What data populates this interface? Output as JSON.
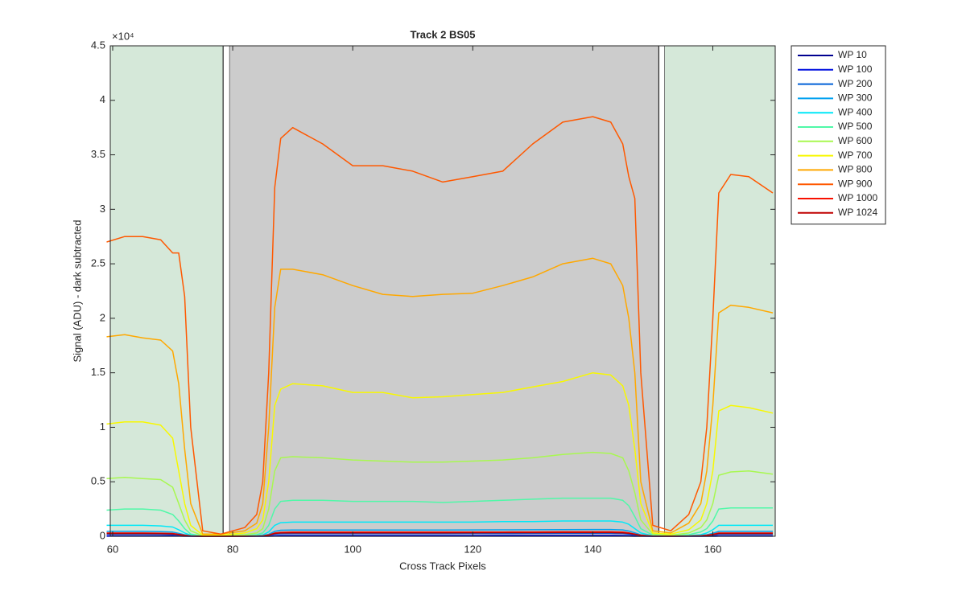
{
  "chart_data": {
    "type": "line",
    "title": "Track 2  BS05",
    "x_label": "Cross Track Pixels",
    "y_label": "Signal (ADU) - dark subtracted",
    "y_exponent": "×10⁴",
    "xlim": [
      59.6,
      170.4
    ],
    "xticks": [
      60,
      80,
      100,
      120,
      140,
      160
    ],
    "ylim": [
      0,
      45000
    ],
    "yticks": [
      {
        "value": 0,
        "label": "0"
      },
      {
        "value": 5000,
        "label": "0.5"
      },
      {
        "value": 10000,
        "label": "1"
      },
      {
        "value": 15000,
        "label": "1.5"
      },
      {
        "value": 20000,
        "label": "2"
      },
      {
        "value": 25000,
        "label": "2.5"
      },
      {
        "value": 30000,
        "label": "3"
      },
      {
        "value": 35000,
        "label": "3.5"
      },
      {
        "value": 40000,
        "label": "4"
      },
      {
        "value": 45000,
        "label": "4.5"
      }
    ],
    "grid": false,
    "legend": "outside-right",
    "regions": [
      {
        "xlim": [
          59.6,
          78.4
        ],
        "color": "#d5e8d9"
      },
      {
        "xlim": [
          78.4,
          79.5
        ],
        "color": "#ffffff",
        "edgecolor": "#000000"
      },
      {
        "xlim": [
          79.5,
          151
        ],
        "color": "#cccccc"
      },
      {
        "xlim": [
          151,
          152
        ],
        "color": "#ffffff",
        "edgecolor": "#000000"
      },
      {
        "xlim": [
          152,
          170.4
        ],
        "color": "#d5e8d9"
      }
    ],
    "x": [
      59,
      62,
      65,
      68,
      70,
      71,
      72,
      73,
      75,
      78,
      82,
      84,
      85,
      86,
      87,
      88,
      90,
      95,
      100,
      105,
      110,
      115,
      120,
      125,
      130,
      135,
      140,
      143,
      145,
      146,
      147,
      148,
      150,
      153,
      156,
      158,
      159,
      160,
      161,
      163,
      166,
      170
    ],
    "series": [
      {
        "name": "WP 10",
        "color": "#000090",
        "values": [
          5,
          5,
          5,
          5,
          5,
          4,
          2,
          1,
          0,
          0,
          0,
          0,
          1,
          2,
          5,
          6,
          6,
          6,
          6,
          6,
          6,
          6,
          6,
          6,
          6,
          6,
          6,
          6,
          6,
          5,
          3,
          1,
          0,
          0,
          0,
          1,
          2,
          3,
          5,
          5,
          5,
          5
        ]
      },
      {
        "name": "WP 100",
        "color": "#0010e0",
        "values": [
          60,
          60,
          60,
          57,
          50,
          36,
          18,
          6,
          1,
          1,
          2,
          4,
          8,
          24,
          60,
          72,
          75,
          75,
          75,
          75,
          75,
          75,
          76,
          78,
          80,
          81,
          81,
          81,
          76,
          63,
          42,
          18,
          3,
          1,
          4,
          9,
          18,
          36,
          60,
          60,
          60,
          60
        ]
      },
      {
        "name": "WP 200",
        "color": "#0060d8",
        "values": [
          200,
          200,
          200,
          190,
          170,
          120,
          60,
          20,
          2,
          2,
          6,
          12,
          25,
          80,
          200,
          240,
          250,
          250,
          250,
          250,
          250,
          250,
          255,
          260,
          265,
          270,
          270,
          270,
          255,
          210,
          140,
          60,
          8,
          4,
          12,
          30,
          60,
          120,
          200,
          200,
          200,
          200
        ]
      },
      {
        "name": "WP 300",
        "color": "#00a0f0",
        "values": [
          450,
          450,
          450,
          430,
          380,
          270,
          140,
          50,
          5,
          5,
          15,
          30,
          60,
          180,
          450,
          550,
          570,
          570,
          570,
          570,
          570,
          570,
          580,
          590,
          600,
          610,
          620,
          620,
          580,
          480,
          320,
          130,
          20,
          10,
          30,
          70,
          140,
          270,
          450,
          450,
          450,
          450
        ]
      },
      {
        "name": "WP 400",
        "color": "#00e8f8",
        "values": [
          1000,
          1000,
          1000,
          950,
          850,
          600,
          300,
          100,
          10,
          10,
          30,
          60,
          120,
          400,
          1000,
          1250,
          1300,
          1300,
          1300,
          1300,
          1300,
          1300,
          1300,
          1350,
          1350,
          1400,
          1400,
          1400,
          1300,
          1100,
          700,
          300,
          40,
          20,
          60,
          150,
          300,
          600,
          1000,
          1000,
          1000,
          1000
        ]
      },
      {
        "name": "WP 500",
        "color": "#50f8a8",
        "values": [
          2400,
          2500,
          2500,
          2400,
          2000,
          1400,
          700,
          200,
          30,
          30,
          70,
          150,
          300,
          1000,
          2500,
          3200,
          3300,
          3300,
          3200,
          3200,
          3200,
          3100,
          3200,
          3300,
          3400,
          3500,
          3500,
          3500,
          3300,
          2800,
          1800,
          700,
          100,
          50,
          150,
          400,
          700,
          1400,
          2500,
          2600,
          2600,
          2600
        ]
      },
      {
        "name": "WP 600",
        "color": "#a8f850",
        "values": [
          5300,
          5400,
          5300,
          5200,
          4500,
          3000,
          1500,
          500,
          50,
          50,
          150,
          300,
          700,
          2500,
          6000,
          7200,
          7300,
          7200,
          7000,
          6900,
          6800,
          6800,
          6900,
          7000,
          7200,
          7500,
          7700,
          7600,
          7200,
          6000,
          4000,
          1500,
          200,
          100,
          300,
          800,
          1500,
          3000,
          5600,
          5900,
          6000,
          5700
        ]
      },
      {
        "name": "WP 700",
        "color": "#f8f800",
        "values": [
          10300,
          10500,
          10500,
          10200,
          9000,
          6000,
          3000,
          1000,
          100,
          100,
          300,
          700,
          1500,
          5000,
          12000,
          13500,
          14000,
          13800,
          13200,
          13200,
          12700,
          12800,
          13000,
          13200,
          13700,
          14200,
          15000,
          14800,
          13800,
          12000,
          8000,
          3000,
          300,
          200,
          600,
          1500,
          3000,
          6000,
          11500,
          12000,
          11800,
          11300
        ]
      },
      {
        "name": "WP 800",
        "color": "#ffa800",
        "values": [
          18300,
          18500,
          18200,
          18000,
          17000,
          14000,
          8000,
          3000,
          200,
          200,
          500,
          1200,
          3000,
          10000,
          21000,
          24500,
          24500,
          24000,
          23000,
          22200,
          22000,
          22200,
          22300,
          23000,
          23800,
          25000,
          25500,
          25000,
          23000,
          20000,
          15000,
          5000,
          500,
          300,
          1200,
          3000,
          6000,
          12000,
          20500,
          21200,
          21000,
          20500
        ]
      },
      {
        "name": "WP 900",
        "color": "#ff5800",
        "values": [
          27000,
          27500,
          27500,
          27200,
          26000,
          26000,
          22000,
          10000,
          500,
          200,
          800,
          2000,
          5000,
          15000,
          32000,
          36500,
          37500,
          36000,
          34000,
          34000,
          33500,
          32500,
          33000,
          33500,
          36000,
          38000,
          38500,
          38000,
          36000,
          33000,
          31000,
          15000,
          1000,
          500,
          2000,
          5000,
          10000,
          20000,
          31500,
          33200,
          33000,
          31500
        ]
      },
      {
        "name": "WP 1000",
        "color": "#f81000",
        "values": [
          300,
          300,
          300,
          290,
          260,
          180,
          90,
          30,
          3,
          3,
          9,
          18,
          36,
          120,
          300,
          360,
          380,
          380,
          380,
          380,
          380,
          380,
          385,
          390,
          400,
          410,
          410,
          410,
          385,
          320,
          210,
          90,
          12,
          6,
          18,
          45,
          90,
          180,
          300,
          300,
          300,
          300
        ]
      },
      {
        "name": "WP 1024",
        "color": "#c00000",
        "values": [
          250,
          250,
          250,
          240,
          215,
          150,
          75,
          25,
          3,
          3,
          8,
          15,
          30,
          100,
          250,
          300,
          320,
          320,
          320,
          320,
          320,
          320,
          325,
          330,
          335,
          340,
          340,
          340,
          320,
          265,
          175,
          75,
          10,
          5,
          15,
          38,
          75,
          150,
          250,
          250,
          250,
          250
        ]
      }
    ]
  }
}
